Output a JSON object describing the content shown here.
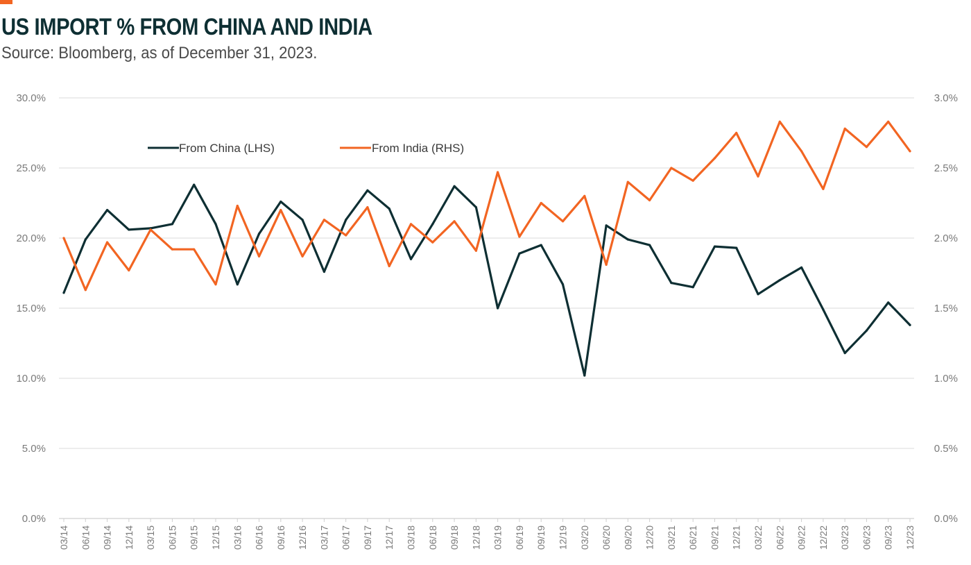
{
  "header": {
    "title": "US IMPORT % FROM CHINA AND INDIA",
    "subtitle": "Source: Bloomberg, as of December 31, 2023."
  },
  "colors": {
    "accent": "#f26522",
    "china": "#0e2f33",
    "india": "#f26522",
    "grid": "#e2e2e2"
  },
  "chart_data": {
    "type": "line",
    "x": [
      "03/14",
      "06/14",
      "09/14",
      "12/14",
      "03/15",
      "06/15",
      "09/15",
      "12/15",
      "03/16",
      "06/16",
      "09/16",
      "12/16",
      "03/17",
      "06/17",
      "09/17",
      "12/17",
      "03/18",
      "06/18",
      "09/18",
      "12/18",
      "03/19",
      "06/19",
      "09/19",
      "12/19",
      "03/20",
      "06/20",
      "09/20",
      "12/20",
      "03/21",
      "06/21",
      "09/21",
      "12/21",
      "03/22",
      "06/22",
      "09/22",
      "12/22",
      "03/23",
      "06/23",
      "09/23",
      "12/23"
    ],
    "series": [
      {
        "name": "From China (LHS)",
        "axis": "left",
        "values": [
          16.1,
          19.9,
          22.0,
          20.6,
          20.7,
          21.0,
          23.8,
          21.0,
          16.7,
          20.3,
          22.6,
          21.3,
          17.6,
          21.3,
          23.4,
          22.1,
          18.5,
          21.0,
          23.7,
          22.2,
          15.0,
          18.9,
          19.5,
          16.7,
          10.2,
          20.9,
          19.9,
          19.5,
          16.8,
          16.5,
          19.4,
          19.3,
          16.0,
          17.0,
          17.9,
          14.9,
          11.8,
          13.4,
          15.4,
          13.8
        ]
      },
      {
        "name": "From India (RHS)",
        "axis": "right",
        "values": [
          2.0,
          1.63,
          1.97,
          1.77,
          2.06,
          1.92,
          1.92,
          1.67,
          2.23,
          1.87,
          2.2,
          1.87,
          2.13,
          2.02,
          2.22,
          1.8,
          2.1,
          1.97,
          2.12,
          1.91,
          2.47,
          2.01,
          2.25,
          2.12,
          2.3,
          1.81,
          2.4,
          2.27,
          2.5,
          2.41,
          2.57,
          2.75,
          2.44,
          2.83,
          2.62,
          2.35,
          2.78,
          2.65,
          2.83,
          2.62
        ]
      }
    ],
    "y_left": {
      "ticks": [
        "0.0%",
        "5.0%",
        "10.0%",
        "15.0%",
        "20.0%",
        "25.0%",
        "30.0%"
      ],
      "range": [
        0,
        30
      ]
    },
    "y_right": {
      "ticks": [
        "0.0%",
        "0.5%",
        "1.0%",
        "1.5%",
        "2.0%",
        "2.5%",
        "3.0%"
      ],
      "range": [
        0,
        3
      ]
    },
    "grid": true,
    "legend_placement": "top-left"
  }
}
